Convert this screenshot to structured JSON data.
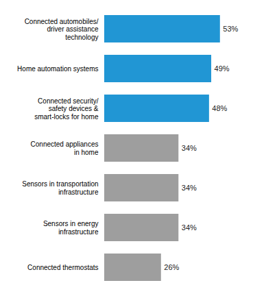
{
  "chart_data": {
    "type": "bar",
    "orientation": "horizontal",
    "categories": [
      "Connected automobiles/\ndriver assistance\ntechnology",
      "Home automation systems",
      "Connected security/\nsafety devices &\nsmart-locks for home",
      "Connected appliances\nin home",
      "Sensors in transportation\ninfrastructure",
      "Sensors in energy\ninfrastructure",
      "Connected thermostats"
    ],
    "values": [
      53,
      49,
      48,
      34,
      34,
      34,
      26
    ],
    "value_labels": [
      "53%",
      "49%",
      "48%",
      "34%",
      "34%",
      "34%",
      "26%"
    ],
    "colors": [
      "#2196d4",
      "#2196d4",
      "#2196d4",
      "#9e9e9e",
      "#9e9e9e",
      "#9e9e9e",
      "#9e9e9e"
    ],
    "xlim": [
      0,
      65
    ],
    "data_labels": true,
    "tick_labels": "y",
    "grid": false
  }
}
